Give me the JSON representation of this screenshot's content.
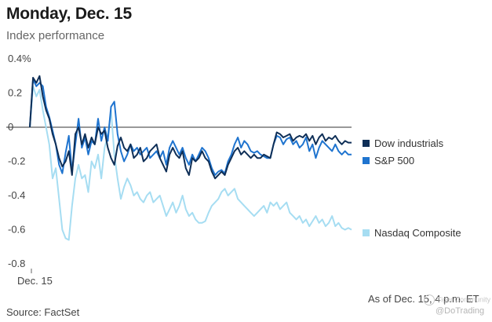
{
  "header": {
    "title": "Monday, Dec. 15",
    "subtitle": "Index performance"
  },
  "footer": {
    "source": "Source: FactSet",
    "as_of": "As of Dec. 15, 4 p.m. ET"
  },
  "watermark": {
    "line1": "Tiger Community",
    "line2": "@DoTrading"
  },
  "chart_data": {
    "type": "line",
    "title": "Monday, Dec. 15",
    "subtitle": "Index performance",
    "xlabel": "",
    "ylabel": "",
    "x_tick_labels": [
      "Dec. 15"
    ],
    "y_ticks": [
      0.4,
      0.2,
      0,
      -0.2,
      -0.4,
      -0.6,
      -0.8
    ],
    "y_tick_labels": [
      "0.4%",
      "0.2",
      "0",
      "-0.2",
      "-0.4",
      "-0.6",
      "-0.8"
    ],
    "ylim": [
      -0.85,
      0.45
    ],
    "n_points": 100,
    "legend_position": "right",
    "series": [
      {
        "name": "Dow industrials",
        "color": "#0f2f57",
        "values": [
          0.0,
          0.29,
          0.26,
          0.3,
          0.18,
          0.1,
          0.05,
          -0.04,
          -0.1,
          -0.18,
          -0.23,
          -0.2,
          -0.14,
          -0.28,
          -0.04,
          0.0,
          -0.1,
          -0.04,
          -0.12,
          -0.06,
          -0.1,
          0.0,
          -0.04,
          -0.02,
          -0.12,
          -0.18,
          -0.22,
          -0.11,
          -0.06,
          -0.12,
          -0.14,
          -0.1,
          -0.18,
          -0.16,
          -0.12,
          -0.2,
          -0.18,
          -0.14,
          -0.12,
          -0.1,
          -0.18,
          -0.22,
          -0.26,
          -0.16,
          -0.12,
          -0.16,
          -0.18,
          -0.14,
          -0.24,
          -0.28,
          -0.18,
          -0.2,
          -0.18,
          -0.14,
          -0.18,
          -0.2,
          -0.26,
          -0.3,
          -0.28,
          -0.26,
          -0.28,
          -0.22,
          -0.18,
          -0.14,
          -0.12,
          -0.16,
          -0.14,
          -0.16,
          -0.18,
          -0.16,
          -0.18,
          -0.18,
          -0.16,
          -0.17,
          -0.18,
          -0.1,
          -0.03,
          -0.04,
          -0.06,
          -0.05,
          -0.04,
          -0.08,
          -0.06,
          -0.05,
          -0.06,
          -0.04,
          -0.08,
          -0.05,
          -0.1,
          -0.06,
          -0.04,
          -0.08,
          -0.06,
          -0.07,
          -0.05,
          -0.08,
          -0.1,
          -0.08,
          -0.09,
          -0.09
        ]
      },
      {
        "name": "S&P 500",
        "color": "#1f74cf",
        "values": [
          0.0,
          0.28,
          0.24,
          0.26,
          0.24,
          0.12,
          0.06,
          -0.02,
          -0.1,
          -0.22,
          -0.27,
          -0.15,
          -0.05,
          -0.26,
          -0.1,
          0.05,
          -0.12,
          -0.06,
          -0.16,
          -0.08,
          -0.1,
          0.05,
          -0.08,
          0.0,
          -0.08,
          0.12,
          0.15,
          -0.04,
          -0.14,
          -0.2,
          -0.16,
          -0.1,
          -0.14,
          -0.12,
          -0.16,
          -0.14,
          -0.12,
          -0.18,
          -0.16,
          -0.14,
          -0.18,
          -0.14,
          -0.22,
          -0.12,
          -0.08,
          -0.12,
          -0.16,
          -0.12,
          -0.18,
          -0.22,
          -0.16,
          -0.2,
          -0.16,
          -0.12,
          -0.14,
          -0.18,
          -0.24,
          -0.28,
          -0.26,
          -0.25,
          -0.27,
          -0.2,
          -0.16,
          -0.1,
          -0.06,
          -0.12,
          -0.08,
          -0.1,
          -0.14,
          -0.15,
          -0.14,
          -0.16,
          -0.17,
          -0.18,
          -0.18,
          -0.1,
          -0.05,
          -0.06,
          -0.1,
          -0.07,
          -0.06,
          -0.1,
          -0.08,
          -0.12,
          -0.1,
          -0.06,
          -0.14,
          -0.1,
          -0.18,
          -0.12,
          -0.08,
          -0.1,
          -0.12,
          -0.14,
          -0.1,
          -0.14,
          -0.16,
          -0.14,
          -0.16,
          -0.16
        ]
      },
      {
        "name": "Nasdaq Composite",
        "color": "#a6ddf2",
        "values": [
          0.0,
          0.24,
          0.18,
          0.22,
          0.1,
          0.0,
          -0.1,
          -0.3,
          -0.24,
          -0.42,
          -0.6,
          -0.65,
          -0.66,
          -0.46,
          -0.3,
          -0.22,
          -0.3,
          -0.28,
          -0.38,
          -0.2,
          -0.24,
          -0.16,
          -0.3,
          -0.12,
          -0.05,
          0.1,
          -0.16,
          -0.3,
          -0.42,
          -0.35,
          -0.3,
          -0.34,
          -0.4,
          -0.38,
          -0.42,
          -0.44,
          -0.4,
          -0.38,
          -0.44,
          -0.42,
          -0.4,
          -0.46,
          -0.52,
          -0.48,
          -0.44,
          -0.5,
          -0.46,
          -0.4,
          -0.48,
          -0.52,
          -0.5,
          -0.54,
          -0.56,
          -0.56,
          -0.55,
          -0.5,
          -0.46,
          -0.44,
          -0.42,
          -0.38,
          -0.36,
          -0.4,
          -0.38,
          -0.36,
          -0.42,
          -0.44,
          -0.46,
          -0.48,
          -0.5,
          -0.52,
          -0.5,
          -0.48,
          -0.46,
          -0.5,
          -0.44,
          -0.46,
          -0.44,
          -0.48,
          -0.46,
          -0.44,
          -0.5,
          -0.52,
          -0.54,
          -0.52,
          -0.56,
          -0.54,
          -0.58,
          -0.55,
          -0.52,
          -0.56,
          -0.54,
          -0.58,
          -0.56,
          -0.52,
          -0.58,
          -0.56,
          -0.59,
          -0.6,
          -0.59,
          -0.6
        ]
      }
    ]
  }
}
